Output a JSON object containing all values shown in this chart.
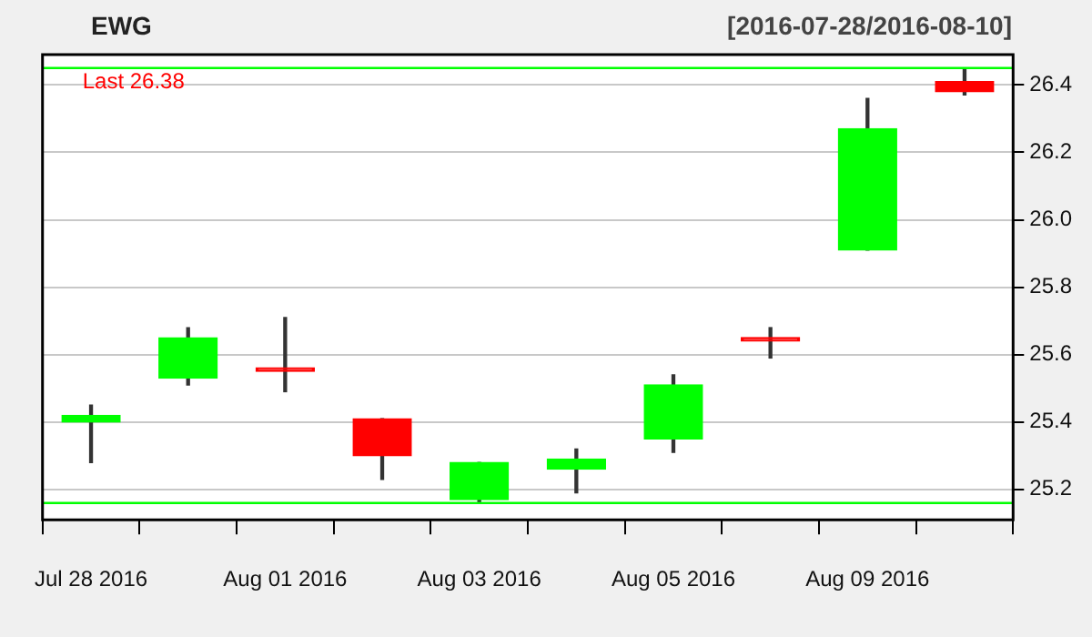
{
  "chart_data": {
    "type": "candlestick",
    "title": "EWG",
    "subtitle": "[2016-07-28/2016-08-10]",
    "categories": [
      "Jul 28 2016",
      null,
      "Aug 01 2016",
      null,
      "Aug 03 2016",
      null,
      "Aug 05 2016",
      null,
      "Aug 09 2016",
      null
    ],
    "ohlc": [
      [
        25.4,
        25.45,
        25.28,
        25.42
      ],
      [
        25.53,
        25.68,
        25.51,
        25.65
      ],
      [
        25.56,
        25.71,
        25.49,
        25.55
      ],
      [
        25.41,
        25.41,
        25.23,
        25.3
      ],
      [
        25.17,
        25.28,
        25.16,
        25.28
      ],
      [
        25.26,
        25.32,
        25.19,
        25.29
      ],
      [
        25.35,
        25.54,
        25.31,
        25.51
      ],
      [
        25.65,
        25.68,
        25.59,
        25.64
      ],
      [
        25.91,
        26.36,
        25.91,
        26.27
      ],
      [
        26.41,
        26.45,
        26.37,
        26.38
      ]
    ],
    "colors": [
      "#00ff00",
      "#00ff00",
      "#ff0000",
      "#ff0000",
      "#00ff00",
      "#00ff00",
      "#00ff00",
      "#ff0000",
      "#00ff00",
      "#ff0000"
    ],
    "ylim": [
      25.11,
      26.49
    ],
    "yticks": [
      25.2,
      25.4,
      25.6,
      25.8,
      {
        "value": 26,
        "label": "26.0"
      },
      26.2,
      26.4
    ],
    "grid": "y",
    "ref_lines": [
      {
        "axis": "y",
        "value": 26.45,
        "color": "#00ff00"
      },
      {
        "axis": "y",
        "value": 25.16,
        "color": "#00ff00"
      }
    ],
    "annotations": [
      "Last 26.38"
    ]
  }
}
